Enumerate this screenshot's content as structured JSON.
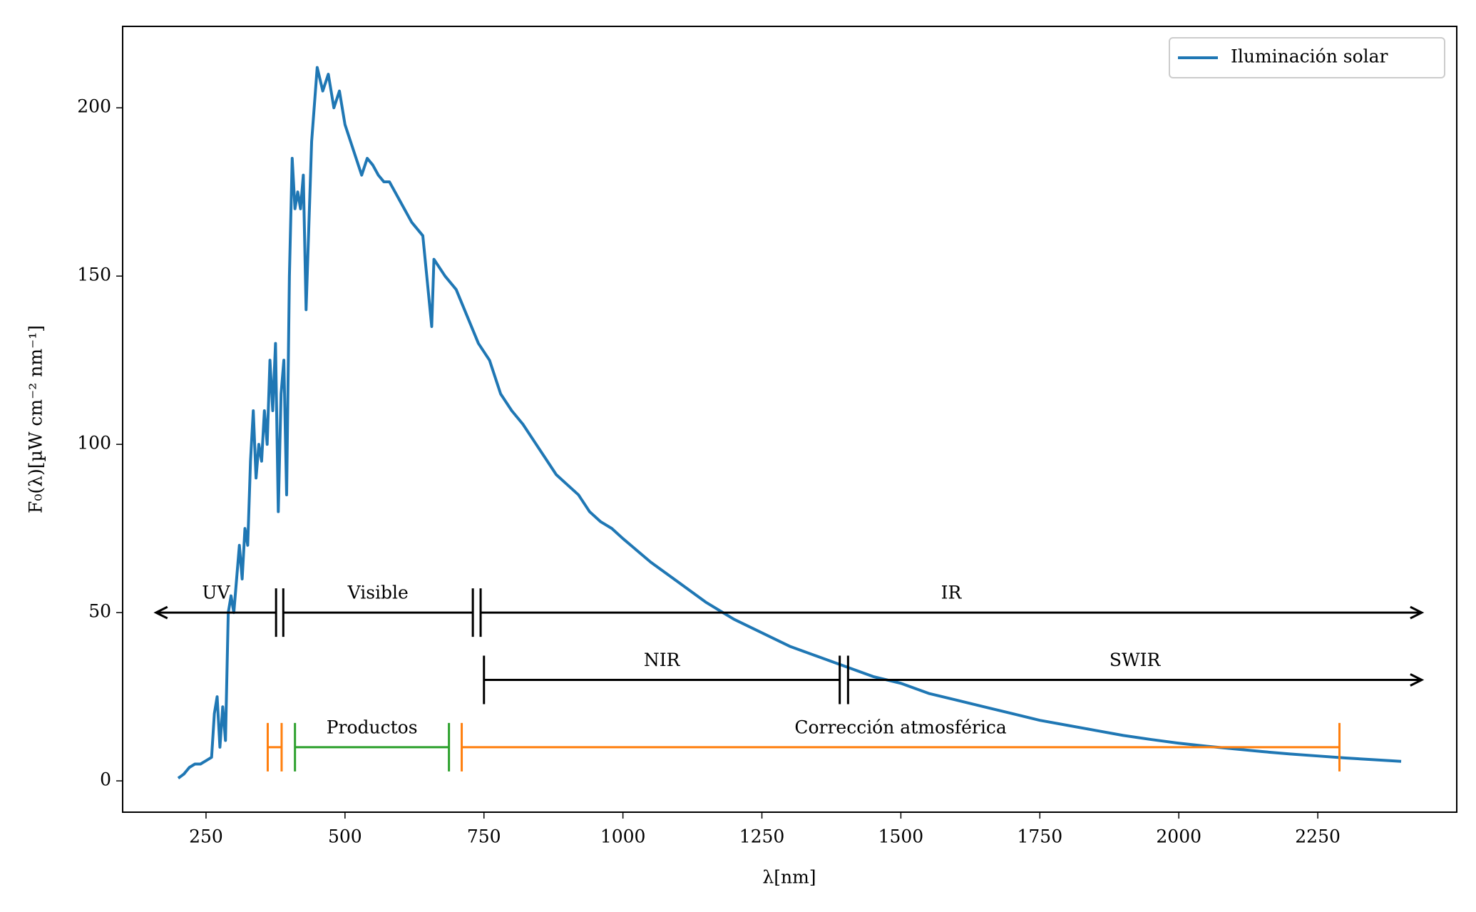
{
  "chart_data": {
    "type": "line",
    "xlabel": "λ[nm]",
    "ylabel": "F₀(λ)[µW cm⁻² nm⁻¹]",
    "x": [
      200,
      210,
      220,
      230,
      240,
      250,
      260,
      265,
      270,
      275,
      280,
      285,
      290,
      295,
      300,
      305,
      310,
      315,
      320,
      325,
      330,
      335,
      340,
      345,
      350,
      355,
      360,
      365,
      370,
      375,
      380,
      385,
      390,
      395,
      400,
      405,
      410,
      415,
      420,
      425,
      430,
      435,
      440,
      450,
      460,
      470,
      480,
      490,
      500,
      510,
      520,
      530,
      540,
      550,
      560,
      570,
      580,
      590,
      600,
      620,
      640,
      656,
      660,
      680,
      700,
      720,
      740,
      760,
      780,
      800,
      820,
      840,
      860,
      880,
      900,
      920,
      940,
      960,
      980,
      1000,
      1050,
      1100,
      1150,
      1200,
      1250,
      1300,
      1350,
      1400,
      1450,
      1500,
      1550,
      1600,
      1650,
      1700,
      1750,
      1800,
      1850,
      1900,
      1950,
      2000,
      2050,
      2100,
      2150,
      2200,
      2250,
      2300,
      2350,
      2400
    ],
    "series": [
      {
        "name": "Iluminación solar",
        "color": "#1f77b4",
        "values": [
          0.8,
          2,
          4,
          5,
          5,
          6,
          7,
          20,
          25,
          10,
          22,
          12,
          50,
          55,
          50,
          60,
          70,
          60,
          75,
          70,
          95,
          110,
          90,
          100,
          95,
          110,
          100,
          125,
          110,
          130,
          80,
          115,
          125,
          85,
          150,
          185,
          170,
          175,
          170,
          180,
          140,
          165,
          190,
          212,
          205,
          210,
          200,
          205,
          195,
          190,
          185,
          180,
          185,
          183,
          180,
          178,
          178,
          175,
          172,
          166,
          162,
          135,
          155,
          150,
          146,
          138,
          130,
          125,
          115,
          110,
          106,
          101,
          96,
          91,
          88,
          85,
          80,
          77,
          75,
          72,
          65,
          59,
          53,
          48,
          44,
          40,
          37,
          34,
          31,
          29,
          26,
          24,
          22,
          20,
          18,
          16.5,
          15,
          13.5,
          12.3,
          11.2,
          10.3,
          9.5,
          8.7,
          8,
          7.4,
          6.8,
          6.3,
          5.8
        ]
      }
    ],
    "xlim": [
      100,
      2500
    ],
    "ylim": [
      -9.3,
      224.2
    ],
    "xticks": [
      250,
      500,
      750,
      1000,
      1250,
      1500,
      1750,
      2000,
      2250
    ],
    "yticks": [
      0,
      50,
      100,
      150,
      200
    ],
    "legend": "upper right",
    "bands": [
      {
        "label": "UV",
        "start": 160,
        "end": 376,
        "y": 50,
        "color": "#000000",
        "ends": [
          "arrow",
          "bar"
        ]
      },
      {
        "label": "Visible",
        "start": 389,
        "end": 730,
        "y": 50,
        "color": "#000000",
        "ends": [
          "bar",
          "bar"
        ]
      },
      {
        "label": "IR",
        "start": 744,
        "end": 2437,
        "y": 50,
        "color": "#000000",
        "ends": [
          "bar",
          "arrow"
        ]
      },
      {
        "label": "NIR",
        "start": 750,
        "end": 1390,
        "y": 30,
        "color": "#000000",
        "ends": [
          "bar",
          "bar"
        ]
      },
      {
        "label": "SWIR",
        "start": 1405,
        "end": 2437,
        "y": 30,
        "color": "#000000",
        "ends": [
          "bar",
          "arrow"
        ]
      },
      {
        "start": 361,
        "end": 386,
        "y": 10,
        "color": "#ff7f0e",
        "ends": [
          "bar",
          "bar"
        ]
      },
      {
        "label": "Productos",
        "start": 410,
        "end": 687,
        "y": 10,
        "color": "#2ca02c",
        "ends": [
          "bar",
          "bar"
        ]
      },
      {
        "label": "Corrección atmosférica",
        "start": 710,
        "end": 2289,
        "y": 10,
        "color": "#ff7f0e",
        "ends": [
          "bar",
          "bar"
        ]
      }
    ]
  }
}
